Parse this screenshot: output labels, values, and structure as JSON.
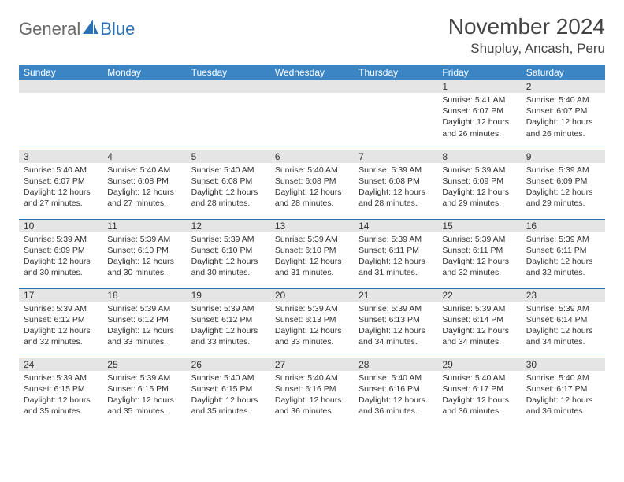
{
  "logo": {
    "word1": "General",
    "word2": "Blue"
  },
  "header": {
    "month": "November 2024",
    "location": "Shupluy, Ancash, Peru"
  },
  "calendar": {
    "day_names": [
      "Sunday",
      "Monday",
      "Tuesday",
      "Wednesday",
      "Thursday",
      "Friday",
      "Saturday"
    ],
    "header_bg": "#3b85c5",
    "header_fg": "#ffffff",
    "daynum_bg": "#e5e5e5",
    "rule_color": "#2a72b5",
    "text_color": "#333333",
    "cell_fontsize": 10.5,
    "weeks": [
      [
        {
          "n": "",
          "sunrise": "",
          "sunset": "",
          "daylight": ""
        },
        {
          "n": "",
          "sunrise": "",
          "sunset": "",
          "daylight": ""
        },
        {
          "n": "",
          "sunrise": "",
          "sunset": "",
          "daylight": ""
        },
        {
          "n": "",
          "sunrise": "",
          "sunset": "",
          "daylight": ""
        },
        {
          "n": "",
          "sunrise": "",
          "sunset": "",
          "daylight": ""
        },
        {
          "n": "1",
          "sunrise": "Sunrise: 5:41 AM",
          "sunset": "Sunset: 6:07 PM",
          "daylight": "Daylight: 12 hours and 26 minutes."
        },
        {
          "n": "2",
          "sunrise": "Sunrise: 5:40 AM",
          "sunset": "Sunset: 6:07 PM",
          "daylight": "Daylight: 12 hours and 26 minutes."
        }
      ],
      [
        {
          "n": "3",
          "sunrise": "Sunrise: 5:40 AM",
          "sunset": "Sunset: 6:07 PM",
          "daylight": "Daylight: 12 hours and 27 minutes."
        },
        {
          "n": "4",
          "sunrise": "Sunrise: 5:40 AM",
          "sunset": "Sunset: 6:08 PM",
          "daylight": "Daylight: 12 hours and 27 minutes."
        },
        {
          "n": "5",
          "sunrise": "Sunrise: 5:40 AM",
          "sunset": "Sunset: 6:08 PM",
          "daylight": "Daylight: 12 hours and 28 minutes."
        },
        {
          "n": "6",
          "sunrise": "Sunrise: 5:40 AM",
          "sunset": "Sunset: 6:08 PM",
          "daylight": "Daylight: 12 hours and 28 minutes."
        },
        {
          "n": "7",
          "sunrise": "Sunrise: 5:39 AM",
          "sunset": "Sunset: 6:08 PM",
          "daylight": "Daylight: 12 hours and 28 minutes."
        },
        {
          "n": "8",
          "sunrise": "Sunrise: 5:39 AM",
          "sunset": "Sunset: 6:09 PM",
          "daylight": "Daylight: 12 hours and 29 minutes."
        },
        {
          "n": "9",
          "sunrise": "Sunrise: 5:39 AM",
          "sunset": "Sunset: 6:09 PM",
          "daylight": "Daylight: 12 hours and 29 minutes."
        }
      ],
      [
        {
          "n": "10",
          "sunrise": "Sunrise: 5:39 AM",
          "sunset": "Sunset: 6:09 PM",
          "daylight": "Daylight: 12 hours and 30 minutes."
        },
        {
          "n": "11",
          "sunrise": "Sunrise: 5:39 AM",
          "sunset": "Sunset: 6:10 PM",
          "daylight": "Daylight: 12 hours and 30 minutes."
        },
        {
          "n": "12",
          "sunrise": "Sunrise: 5:39 AM",
          "sunset": "Sunset: 6:10 PM",
          "daylight": "Daylight: 12 hours and 30 minutes."
        },
        {
          "n": "13",
          "sunrise": "Sunrise: 5:39 AM",
          "sunset": "Sunset: 6:10 PM",
          "daylight": "Daylight: 12 hours and 31 minutes."
        },
        {
          "n": "14",
          "sunrise": "Sunrise: 5:39 AM",
          "sunset": "Sunset: 6:11 PM",
          "daylight": "Daylight: 12 hours and 31 minutes."
        },
        {
          "n": "15",
          "sunrise": "Sunrise: 5:39 AM",
          "sunset": "Sunset: 6:11 PM",
          "daylight": "Daylight: 12 hours and 32 minutes."
        },
        {
          "n": "16",
          "sunrise": "Sunrise: 5:39 AM",
          "sunset": "Sunset: 6:11 PM",
          "daylight": "Daylight: 12 hours and 32 minutes."
        }
      ],
      [
        {
          "n": "17",
          "sunrise": "Sunrise: 5:39 AM",
          "sunset": "Sunset: 6:12 PM",
          "daylight": "Daylight: 12 hours and 32 minutes."
        },
        {
          "n": "18",
          "sunrise": "Sunrise: 5:39 AM",
          "sunset": "Sunset: 6:12 PM",
          "daylight": "Daylight: 12 hours and 33 minutes."
        },
        {
          "n": "19",
          "sunrise": "Sunrise: 5:39 AM",
          "sunset": "Sunset: 6:12 PM",
          "daylight": "Daylight: 12 hours and 33 minutes."
        },
        {
          "n": "20",
          "sunrise": "Sunrise: 5:39 AM",
          "sunset": "Sunset: 6:13 PM",
          "daylight": "Daylight: 12 hours and 33 minutes."
        },
        {
          "n": "21",
          "sunrise": "Sunrise: 5:39 AM",
          "sunset": "Sunset: 6:13 PM",
          "daylight": "Daylight: 12 hours and 34 minutes."
        },
        {
          "n": "22",
          "sunrise": "Sunrise: 5:39 AM",
          "sunset": "Sunset: 6:14 PM",
          "daylight": "Daylight: 12 hours and 34 minutes."
        },
        {
          "n": "23",
          "sunrise": "Sunrise: 5:39 AM",
          "sunset": "Sunset: 6:14 PM",
          "daylight": "Daylight: 12 hours and 34 minutes."
        }
      ],
      [
        {
          "n": "24",
          "sunrise": "Sunrise: 5:39 AM",
          "sunset": "Sunset: 6:15 PM",
          "daylight": "Daylight: 12 hours and 35 minutes."
        },
        {
          "n": "25",
          "sunrise": "Sunrise: 5:39 AM",
          "sunset": "Sunset: 6:15 PM",
          "daylight": "Daylight: 12 hours and 35 minutes."
        },
        {
          "n": "26",
          "sunrise": "Sunrise: 5:40 AM",
          "sunset": "Sunset: 6:15 PM",
          "daylight": "Daylight: 12 hours and 35 minutes."
        },
        {
          "n": "27",
          "sunrise": "Sunrise: 5:40 AM",
          "sunset": "Sunset: 6:16 PM",
          "daylight": "Daylight: 12 hours and 36 minutes."
        },
        {
          "n": "28",
          "sunrise": "Sunrise: 5:40 AM",
          "sunset": "Sunset: 6:16 PM",
          "daylight": "Daylight: 12 hours and 36 minutes."
        },
        {
          "n": "29",
          "sunrise": "Sunrise: 5:40 AM",
          "sunset": "Sunset: 6:17 PM",
          "daylight": "Daylight: 12 hours and 36 minutes."
        },
        {
          "n": "30",
          "sunrise": "Sunrise: 5:40 AM",
          "sunset": "Sunset: 6:17 PM",
          "daylight": "Daylight: 12 hours and 36 minutes."
        }
      ]
    ]
  }
}
